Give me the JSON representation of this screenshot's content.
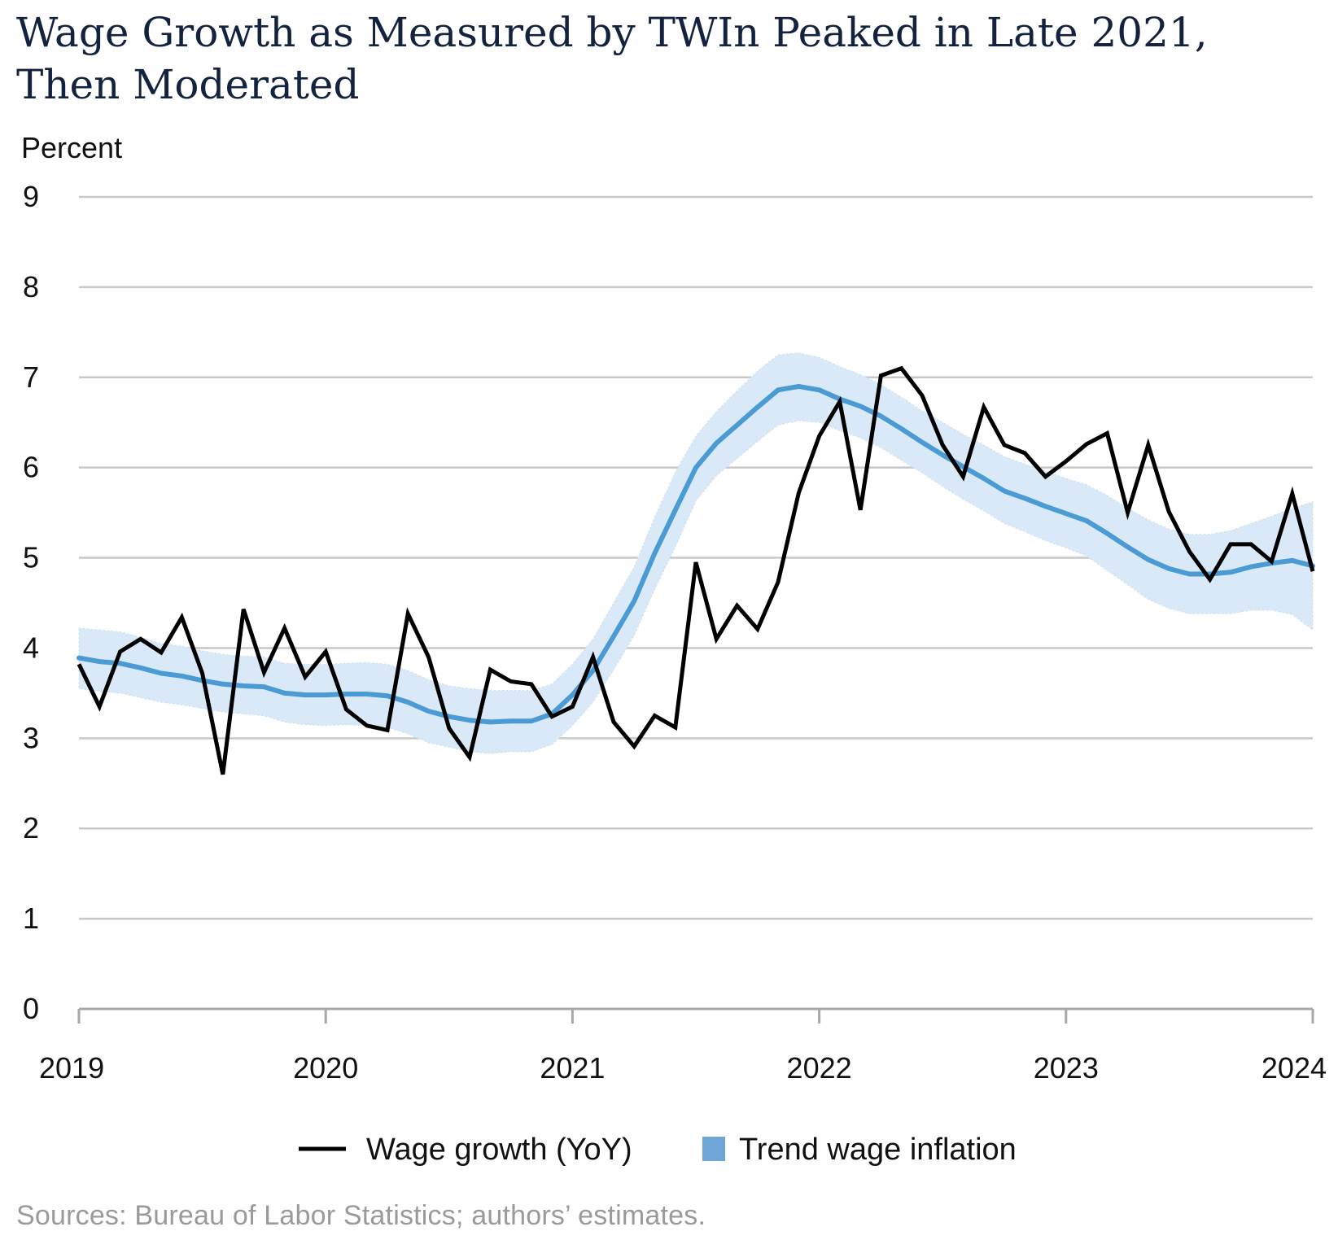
{
  "title": "Wage Growth as Measured by TWIn Peaked in Late 2021, Then Moderated",
  "source": "Sources: Bureau of Labor Statistics; authors’ estimates.",
  "colors": {
    "wage_line": "#000000",
    "trend_line": "#4a9ad4",
    "trend_band": "#d9e9f7",
    "grid": "#c8c8c8",
    "title": "#13233f",
    "source": "#9a9a9a"
  },
  "chart_data": {
    "type": "line",
    "title": "Wage Growth as Measured by TWIn Peaked in Late 2021, Then Moderated",
    "xlabel": "",
    "ylabel": "Percent",
    "ylim": [
      0,
      9
    ],
    "yticks": [
      "0",
      "1",
      "2",
      "3",
      "4",
      "5",
      "6",
      "7",
      "8",
      "9"
    ],
    "xlim": [
      2019.0,
      2024.0
    ],
    "xticks": [
      "2019",
      "2020",
      "2021",
      "2022",
      "2023",
      "2024"
    ],
    "grid": true,
    "legend_position": "bottom",
    "x": [
      2019.0,
      2019.083,
      2019.167,
      2019.25,
      2019.333,
      2019.417,
      2019.5,
      2019.583,
      2019.667,
      2019.75,
      2019.833,
      2019.917,
      2020.0,
      2020.083,
      2020.167,
      2020.25,
      2020.333,
      2020.417,
      2020.5,
      2020.583,
      2020.667,
      2020.75,
      2020.833,
      2020.917,
      2021.0,
      2021.083,
      2021.167,
      2021.25,
      2021.333,
      2021.417,
      2021.5,
      2021.583,
      2021.667,
      2021.75,
      2021.833,
      2021.917,
      2022.0,
      2022.083,
      2022.167,
      2022.25,
      2022.333,
      2022.417,
      2022.5,
      2022.583,
      2022.667,
      2022.75,
      2022.833,
      2022.917,
      2023.0,
      2023.083,
      2023.167,
      2023.25,
      2023.333,
      2023.417,
      2023.5,
      2023.583,
      2023.667,
      2023.75,
      2023.833,
      2023.917,
      2024.0
    ],
    "series": [
      {
        "name": "Wage growth (YoY)",
        "style": "line",
        "values": [
          3.82,
          3.35,
          3.96,
          4.1,
          3.95,
          4.34,
          3.72,
          2.6,
          4.43,
          3.73,
          4.22,
          3.68,
          3.96,
          3.32,
          3.14,
          3.09,
          4.38,
          3.9,
          3.11,
          2.79,
          3.76,
          3.63,
          3.6,
          3.24,
          3.35,
          3.9,
          3.18,
          2.91,
          3.25,
          3.12,
          4.95,
          4.1,
          4.47,
          4.21,
          4.73,
          5.72,
          6.35,
          6.73,
          5.53,
          7.02,
          7.1,
          6.8,
          6.25,
          5.9,
          6.67,
          6.25,
          6.16,
          5.9,
          6.07,
          6.26,
          6.38,
          5.5,
          6.25,
          5.51,
          5.07,
          4.76,
          5.15,
          5.15,
          4.96,
          5.71,
          4.85
        ]
      },
      {
        "name": "Trend wage inflation",
        "style": "line-band",
        "values": [
          3.89,
          3.85,
          3.83,
          3.78,
          3.72,
          3.69,
          3.64,
          3.6,
          3.58,
          3.57,
          3.5,
          3.48,
          3.48,
          3.49,
          3.49,
          3.47,
          3.4,
          3.3,
          3.24,
          3.2,
          3.18,
          3.19,
          3.19,
          3.27,
          3.48,
          3.75,
          4.13,
          4.52,
          5.05,
          5.53,
          6.0,
          6.27,
          6.47,
          6.67,
          6.86,
          6.9,
          6.86,
          6.76,
          6.68,
          6.57,
          6.43,
          6.28,
          6.14,
          6.01,
          5.88,
          5.74,
          5.66,
          5.57,
          5.49,
          5.41,
          5.27,
          5.12,
          4.98,
          4.88,
          4.82,
          4.82,
          4.84,
          4.9,
          4.94,
          4.97,
          4.91
        ],
        "band_upper": [
          4.22,
          4.2,
          4.18,
          4.12,
          4.05,
          4.02,
          3.97,
          3.93,
          3.91,
          3.9,
          3.83,
          3.82,
          3.82,
          3.83,
          3.84,
          3.82,
          3.75,
          3.65,
          3.58,
          3.55,
          3.53,
          3.53,
          3.53,
          3.6,
          3.82,
          4.1,
          4.5,
          4.9,
          5.45,
          5.95,
          6.35,
          6.62,
          6.85,
          7.07,
          7.25,
          7.27,
          7.22,
          7.12,
          7.03,
          6.92,
          6.78,
          6.63,
          6.5,
          6.37,
          6.25,
          6.12,
          6.04,
          5.96,
          5.88,
          5.81,
          5.69,
          5.55,
          5.42,
          5.32,
          5.26,
          5.26,
          5.3,
          5.38,
          5.46,
          5.55,
          5.62
        ],
        "band_lower": [
          3.55,
          3.52,
          3.5,
          3.45,
          3.4,
          3.37,
          3.33,
          3.29,
          3.27,
          3.25,
          3.18,
          3.15,
          3.14,
          3.15,
          3.14,
          3.12,
          3.05,
          2.95,
          2.9,
          2.85,
          2.83,
          2.85,
          2.85,
          2.93,
          3.14,
          3.4,
          3.76,
          4.14,
          4.65,
          5.12,
          5.63,
          5.91,
          6.1,
          6.29,
          6.47,
          6.52,
          6.5,
          6.41,
          6.33,
          6.22,
          6.08,
          5.94,
          5.79,
          5.65,
          5.52,
          5.38,
          5.29,
          5.19,
          5.11,
          5.02,
          4.86,
          4.7,
          4.54,
          4.44,
          4.38,
          4.38,
          4.38,
          4.42,
          4.42,
          4.37,
          4.2
        ]
      }
    ]
  },
  "legend": {
    "items": [
      {
        "label": "Wage growth (YoY)",
        "marker": "line",
        "color": "#000000"
      },
      {
        "label": "Trend wage inflation",
        "marker": "square",
        "color": "#6ea6d8"
      }
    ]
  }
}
